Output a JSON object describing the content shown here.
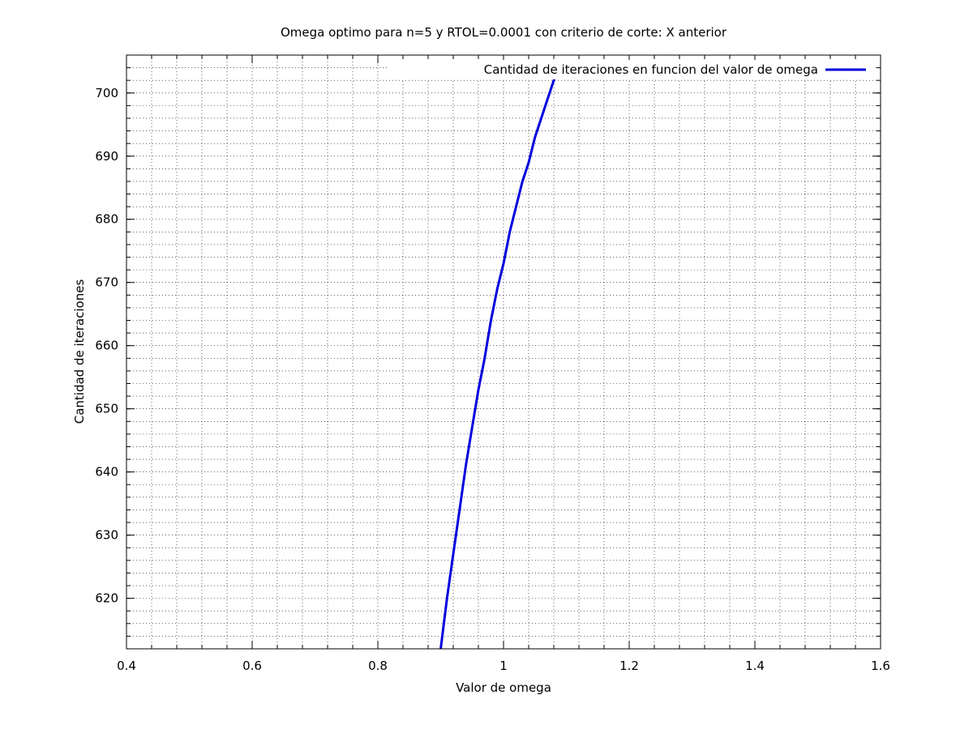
{
  "chart_data": {
    "type": "line",
    "title": "Omega optimo para n=5 y RTOL=0.0001 con criterio de corte: X anterior",
    "xlabel": "Valor de omega",
    "ylabel": "Cantidad de iteraciones",
    "xlim": [
      0.4,
      1.6
    ],
    "ylim": [
      612,
      706
    ],
    "x_ticks": [
      0.4,
      0.6,
      0.8,
      1.0,
      1.2,
      1.4,
      1.6
    ],
    "x_tick_labels": [
      "0.4",
      "0.6",
      "0.8",
      "1",
      "1.2",
      "1.4",
      "1.6"
    ],
    "y_ticks": [
      620,
      630,
      640,
      650,
      660,
      670,
      680,
      690,
      700
    ],
    "y_tick_labels": [
      "620",
      "630",
      "640",
      "650",
      "660",
      "670",
      "680",
      "690",
      "700"
    ],
    "grid": true,
    "legend_position": "top-right",
    "series": [
      {
        "name": "Cantidad de iteraciones en funcion del valor de omega",
        "color": "#0000dd",
        "x": [
          0.9,
          0.91,
          0.92,
          0.93,
          0.94,
          0.95,
          0.96,
          0.97,
          0.98,
          0.99,
          1.0,
          1.01,
          1.02,
          1.03,
          1.04,
          1.05,
          1.06,
          1.07,
          1.08,
          1.09
        ],
        "y": [
          612,
          620,
          627,
          634,
          641,
          647,
          653,
          658,
          664,
          669,
          673,
          678,
          682,
          686,
          689,
          693,
          696,
          699,
          702,
          705
        ]
      }
    ]
  }
}
